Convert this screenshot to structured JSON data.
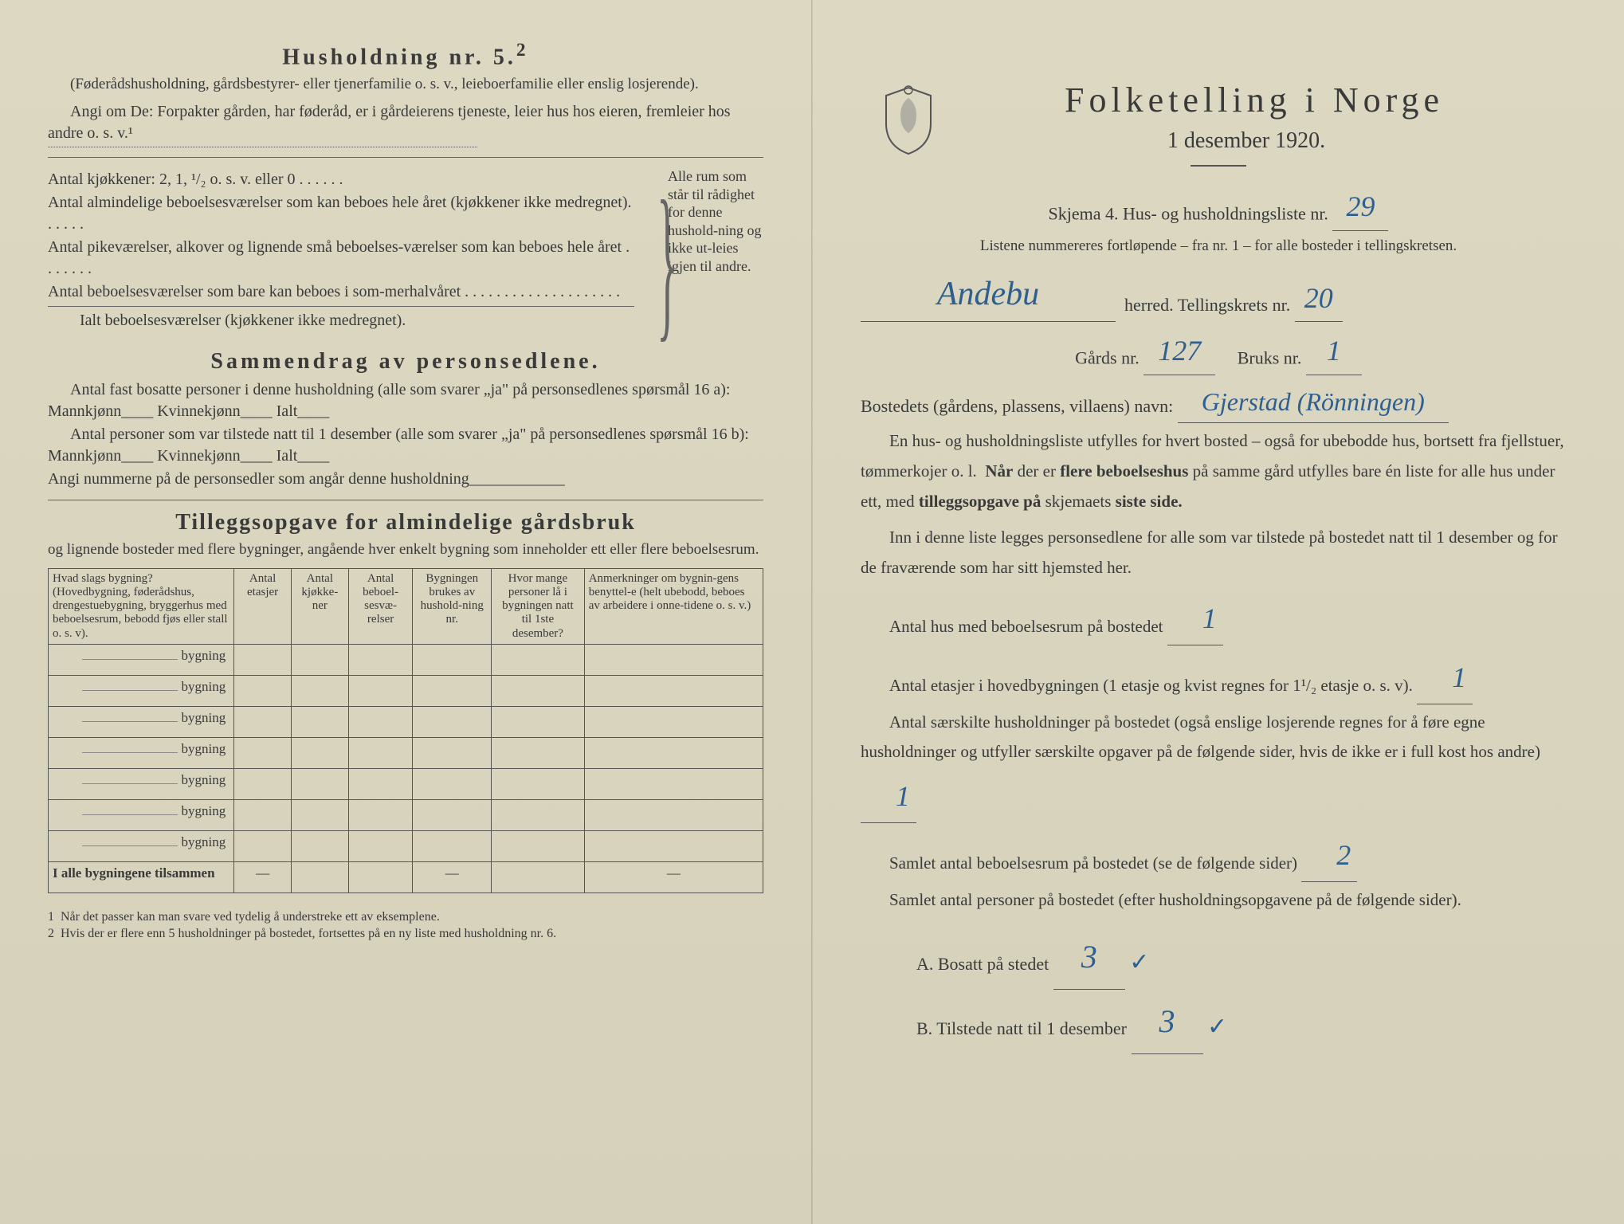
{
  "left": {
    "heading5": "Husholdning nr. 5.",
    "heading5_sup": "2",
    "note_parenth": "(Føderådshusholdning, gårdsbestyrer- eller tjenerfamilie o. s. v., leieboerfamilie eller enslig losjerende).",
    "angi_line": "Angi om De: Forpakter gården, har føderåd, er i gårdeierens tjeneste, leier hus hos eieren, fremleier hos andre o. s. v.¹",
    "kjokken_line": "Antal kjøkkener: 2, 1, ¹/₂ o. s. v. eller 0 . . . . . .",
    "almin_line1": "Antal almindelige beboelsesværelser som kan beboes hele året (kjøkkener ikke medregnet). . . . . .",
    "pike_line": "Antal pikeværelser, alkover og lignende små beboelses-værelser som kan beboes hele året . . . . . . .",
    "sommer_line": "Antal beboelsesværelser som bare kan beboes i som-merhalvåret . . . . . . . . . . . . . . . . . . . .",
    "ialt_line": "Ialt beboelsesværelser (kjøkkener ikke medregnet).",
    "brace_text": "Alle rum som står til rådighet for denne hushold-ning og ikke ut-leies igjen til andre.",
    "sammendrag_title": "Sammendrag av personsedlene.",
    "sam_line1": "Antal fast bosatte personer i denne husholdning (alle som svarer „ja\" på personsedlenes spørsmål 16 a): Mannkjønn____ Kvinnekjønn____ Ialt____",
    "sam_line2": "Antal personer som var tilstede natt til 1 desember (alle som svarer „ja\" på personsedlenes spørsmål 16 b): Mannkjønn____ Kvinnekjønn____ Ialt____",
    "sam_line3": "Angi nummerne på de personsedler som angår denne husholdning____________",
    "tillegg_title": "Tilleggsopgave for almindelige gårdsbruk",
    "tillegg_sub": "og lignende bosteder med flere bygninger, angående hver enkelt bygning som inneholder ett eller flere beboelsesrum.",
    "table": {
      "headers": [
        "Hvad slags bygning?\n(Hovedbygning, føderådshus, drengestuebygning, bryggerhus med beboelsesrum, bebodd fjøs eller stall o. s. v).",
        "Antal etasjer",
        "Antal kjøkke-ner",
        "Antal beboel-sesvæ-relser",
        "Bygningen brukes av hushold-ning nr.",
        "Hvor mange personer lå i bygningen natt til 1ste desember?",
        "Anmerkninger om bygnin-gens benyttel-e (helt ubebodd, beboes av arbeidere i onne-tidene o. s. v.)"
      ],
      "row_label": "bygning",
      "row_count": 7,
      "total_label": "I alle bygningene tilsammen"
    },
    "footnote1": "Når det passer kan man svare ved tydelig å understreke ett av eksemplene.",
    "footnote2": "Hvis der er flere enn 5 husholdninger på bostedet, fortsettes på en ny liste med husholdning nr. 6."
  },
  "right": {
    "main_title": "Folketelling i Norge",
    "subtitle": "1 desember 1920.",
    "skjema_line": "Skjema 4.  Hus- og husholdningsliste nr.",
    "skjema_nr": "29",
    "listene_line": "Listene nummereres fortløpende – fra nr. 1 – for alle bosteder i tellingskretsen.",
    "herred_hand": "Andebu",
    "herred_label": "herred.   Tellingskrets nr.",
    "krets_nr": "20",
    "gards_label": "Gårds nr.",
    "gards_nr": "127",
    "bruks_label": "Bruks nr.",
    "bruks_nr": "1",
    "bosted_label": "Bostedets (gårdens, plassens, villaens) navn:",
    "bosted_hand": "Gjerstad (Rönningen)",
    "para1": "En hus- og husholdningsliste utfylles for hvert bosted – også for ubebodde hus, bortsett fra fjellstuer, tømmerkojer o. l.  Når der er flere beboelseshus på samme gård utfylles bare én liste for alle hus under ett, med tilleggsopgave på skjemaets siste side.",
    "para2": "Inn i denne liste legges personsedlene for alle som var tilstede på bostedet natt til 1 desember og for de fraværende som har sitt hjemsted her.",
    "q_hus": "Antal hus med beboelsesrum på bostedet",
    "q_hus_val": "1",
    "q_etasjer": "Antal etasjer i hovedbygningen (1 etasje og kvist regnes for 1¹/₂ etasje o. s. v).",
    "q_etasjer_val": "1",
    "q_hushold": "Antal særskilte husholdninger på bostedet (også enslige losjerende regnes for å føre egne husholdninger og utfyller særskilte opgaver på de følgende sider, hvis de ikke er i full kost hos andre)",
    "q_hushold_val": "1",
    "q_samlet_rum": "Samlet antal beboelsesrum på bostedet (se de følgende sider)",
    "q_samlet_rum_val": "2",
    "q_samlet_pers": "Samlet antal personer på bostedet (efter husholdningsopgavene på de følgende sider).",
    "a_label": "A. Bosatt på stedet",
    "a_val": "3",
    "b_label": "B. Tilstede natt til 1 desember",
    "b_val": "3",
    "colors": {
      "paper": "#d9d5c0",
      "ink": "#3a3a3a",
      "handwriting": "#2e5f8f"
    }
  }
}
